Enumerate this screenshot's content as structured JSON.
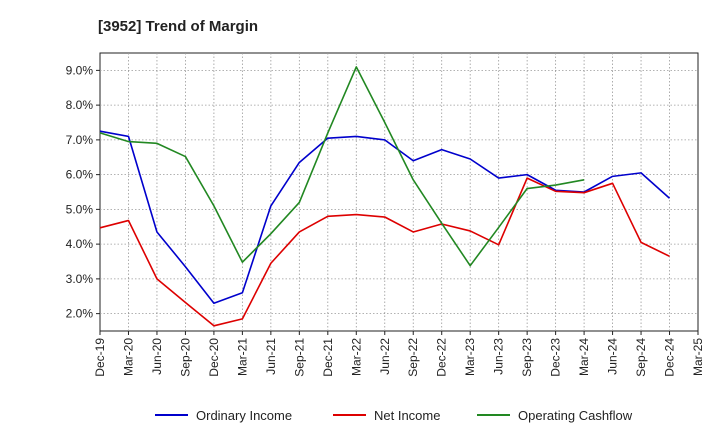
{
  "chart_data": {
    "type": "line",
    "title": "[3952]  Trend of Margin",
    "xlabel": "",
    "ylabel": "",
    "x": [
      "Dec-19",
      "Mar-20",
      "Jun-20",
      "Sep-20",
      "Dec-20",
      "Mar-21",
      "Jun-21",
      "Sep-21",
      "Dec-21",
      "Mar-22",
      "Jun-22",
      "Sep-22",
      "Dec-22",
      "Mar-23",
      "Jun-23",
      "Sep-23",
      "Dec-23",
      "Mar-24",
      "Jun-24",
      "Sep-24",
      "Dec-24",
      "Mar-25"
    ],
    "ylim": [
      1.5,
      9.5
    ],
    "y_ticks": [
      2.0,
      3.0,
      4.0,
      5.0,
      6.0,
      7.0,
      8.0,
      9.0
    ],
    "y_tick_labels": [
      "2.0%",
      "3.0%",
      "4.0%",
      "5.0%",
      "6.0%",
      "7.0%",
      "8.0%",
      "9.0%"
    ],
    "grid": true,
    "legend_position": "bottom",
    "series": [
      {
        "name": "Ordinary Income",
        "color": "#0000cc",
        "values": [
          7.25,
          7.1,
          4.35,
          3.35,
          2.3,
          2.6,
          5.1,
          6.35,
          7.05,
          7.1,
          7.0,
          6.4,
          6.72,
          6.45,
          5.9,
          6.0,
          5.55,
          5.5,
          5.95,
          6.05,
          5.32,
          null
        ]
      },
      {
        "name": "Net Income",
        "color": "#dd0000",
        "values": [
          4.47,
          4.68,
          3.0,
          2.32,
          1.65,
          1.85,
          3.45,
          4.35,
          4.8,
          4.85,
          4.78,
          4.35,
          4.58,
          4.38,
          3.98,
          5.9,
          5.52,
          5.48,
          5.75,
          4.05,
          3.65,
          null
        ]
      },
      {
        "name": "Operating Cashflow",
        "color": "#228822",
        "values": [
          7.2,
          6.95,
          6.9,
          6.52,
          5.1,
          3.48,
          4.3,
          5.2,
          7.2,
          9.1,
          7.5,
          5.85,
          4.6,
          3.38,
          4.48,
          5.6,
          5.7,
          5.85,
          null,
          null,
          null,
          null
        ]
      }
    ]
  }
}
